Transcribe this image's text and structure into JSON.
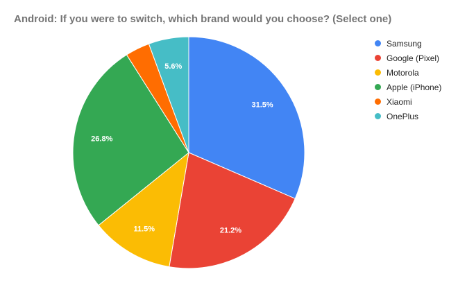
{
  "chart_data": {
    "type": "pie",
    "title": "Android: If you were to switch, which brand would you choose? (Select one)",
    "legend_position": "right",
    "slices": [
      {
        "label": "Samsung",
        "value": 31.5,
        "display": "31.5%",
        "color": "#4285f4"
      },
      {
        "label": "Google (Pixel)",
        "value": 21.2,
        "display": "21.2%",
        "color": "#ea4335"
      },
      {
        "label": "Motorola",
        "value": 11.5,
        "display": "11.5%",
        "color": "#fbbc04"
      },
      {
        "label": "Apple (iPhone)",
        "value": 26.8,
        "display": "26.8%",
        "color": "#34a853"
      },
      {
        "label": "Xiaomi",
        "value": 3.4,
        "display": "",
        "color": "#ff6d01"
      },
      {
        "label": "OnePlus",
        "value": 5.6,
        "display": "5.6%",
        "color": "#46bdc6"
      }
    ]
  }
}
